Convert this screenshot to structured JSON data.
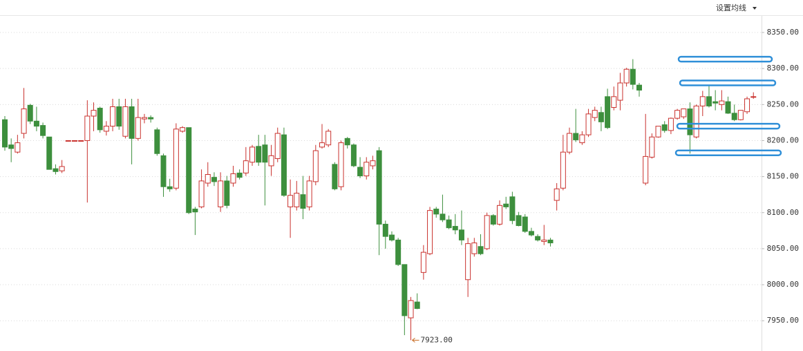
{
  "chart_data": {
    "type": "candlestick",
    "button": "设置均线",
    "open": [
      8229,
      8194,
      8184,
      8210,
      8249,
      8227,
      8221,
      8205,
      8161,
      8158,
      8200,
      8200,
      8200,
      8200,
      8234,
      8245,
      8213,
      8220,
      8247,
      8206,
      8247,
      8203,
      8230,
      8232,
      8215,
      8179,
      8136,
      8134,
      8213,
      8218,
      8105,
      8108,
      8141,
      8149,
      8108,
      8144,
      8141,
      8155,
      8155,
      8170,
      8192,
      8194,
      8165,
      8175,
      8208,
      8108,
      8108,
      8125,
      8108,
      8143,
      8191,
      8194,
      8167,
      8136,
      8203,
      8194,
      8163,
      8151,
      8165,
      8186,
      8084,
      8069,
      8062,
      8028,
      7954,
      7976,
      8017,
      8043,
      8105,
      8098,
      8090,
      8081,
      8076,
      8007,
      8043,
      8053,
      8050,
      8096,
      8084,
      8112,
      8122,
      8096,
      8094,
      8074,
      8067,
      8060,
      8062,
      8117,
      8134,
      8184,
      8210,
      8197,
      8208,
      8232,
      8239,
      8261,
      8246,
      8256,
      8280,
      8299,
      8277,
      8141,
      8177,
      8205,
      8222,
      8214,
      8231,
      8233,
      8244,
      8205,
      8248,
      8261,
      8254,
      8250,
      8254,
      8238,
      8229,
      8240,
      8261
    ],
    "high": [
      8234,
      8203,
      8208,
      8273,
      8251,
      8247,
      8225,
      8205,
      8167,
      8173,
      8200,
      8200,
      8200,
      8256,
      8253,
      8247,
      8227,
      8258,
      8258,
      8258,
      8258,
      8258,
      8237,
      8235,
      8218,
      8182,
      8147,
      8224,
      8220,
      8218,
      8108,
      8160,
      8170,
      8156,
      8156,
      8151,
      8165,
      8160,
      8191,
      8194,
      8208,
      8208,
      8194,
      8218,
      8218,
      8146,
      8144,
      8151,
      8151,
      8194,
      8223,
      8216,
      8170,
      8200,
      8205,
      8196,
      8177,
      8177,
      8179,
      8191,
      8089,
      8074,
      8065,
      8028,
      7983,
      7988,
      8055,
      8108,
      8108,
      8125,
      8096,
      8098,
      8103,
      8065,
      8065,
      8070,
      8100,
      8098,
      8117,
      8122,
      8129,
      8101,
      8098,
      8079,
      8070,
      8083,
      8065,
      8141,
      8208,
      8218,
      8244,
      8213,
      8244,
      8247,
      8247,
      8272,
      8275,
      8294,
      8301,
      8313,
      8280,
      8237,
      8210,
      8220,
      8227,
      8232,
      8244,
      8244,
      8253,
      8250,
      8269,
      8277,
      8270,
      8270,
      8261,
      8250,
      8240,
      8261,
      8267
    ],
    "low": [
      8186,
      8170,
      8182,
      8203,
      8223,
      8213,
      8203,
      8160,
      8153,
      8155,
      8200,
      8200,
      8200,
      8114,
      8213,
      8211,
      8207,
      8213,
      8215,
      8203,
      8167,
      8200,
      8224,
      8225,
      8179,
      8122,
      8129,
      8131,
      8211,
      8098,
      8069,
      8106,
      8136,
      8137,
      8101,
      8106,
      8136,
      8146,
      8151,
      8165,
      8165,
      8110,
      8151,
      8170,
      8122,
      8065,
      8103,
      8091,
      8103,
      8138,
      8189,
      8191,
      8131,
      8131,
      8189,
      8163,
      8148,
      8146,
      8160,
      8041,
      8050,
      8060,
      8026,
      7930,
      7923,
      7966,
      8007,
      8041,
      8093,
      8087,
      8077,
      8070,
      8055,
      7983,
      8039,
      8041,
      8048,
      8082,
      8082,
      8105,
      8084,
      8081,
      8072,
      8067,
      8060,
      8055,
      8053,
      8103,
      8131,
      8181,
      8198,
      8194,
      8205,
      8227,
      8213,
      8216,
      8242,
      8242,
      8275,
      8271,
      8261,
      8138,
      8175,
      8204,
      8211,
      8209,
      8229,
      8230,
      8182,
      8203,
      8234,
      8246,
      8242,
      8242,
      8237,
      8227,
      8228,
      8237,
      8258
    ],
    "close": [
      8191,
      8189,
      8197,
      8244,
      8227,
      8220,
      8207,
      8160,
      8157,
      8164,
      8200,
      8200,
      8200,
      8234,
      8242,
      8215,
      8220,
      8247,
      8220,
      8247,
      8203,
      8232,
      8232,
      8230,
      8182,
      8136,
      8133,
      8216,
      8218,
      8100,
      8101,
      8144,
      8153,
      8143,
      8144,
      8110,
      8154,
      8149,
      8172,
      8191,
      8170,
      8170,
      8179,
      8210,
      8124,
      8124,
      8127,
      8106,
      8144,
      8186,
      8197,
      8213,
      8133,
      8197,
      8194,
      8165,
      8151,
      8170,
      8172,
      8084,
      8067,
      8062,
      8028,
      7957,
      7978,
      7967,
      8045,
      8103,
      8098,
      8090,
      8079,
      8076,
      8062,
      8057,
      8058,
      8043,
      8096,
      8084,
      8110,
      8108,
      8089,
      8082,
      8074,
      8069,
      8062,
      8062,
      8058,
      8133,
      8184,
      8210,
      8201,
      8208,
      8237,
      8242,
      8226,
      8218,
      8261,
      8280,
      8299,
      8278,
      8270,
      8178,
      8205,
      8220,
      8214,
      8231,
      8242,
      8244,
      8208,
      8248,
      8261,
      8248,
      8252,
      8255,
      8238,
      8229,
      8242,
      8258,
      8261
    ],
    "up_color": "#c9302c",
    "down_color": "#3d8f3d",
    "ylim": [
      7908,
      8374
    ],
    "yticks": [
      {
        "value": 7950,
        "label": "7950.00"
      },
      {
        "value": 8000,
        "label": "8000.00"
      },
      {
        "value": 8050,
        "label": "8050.00"
      },
      {
        "value": 8100,
        "label": "8100.00"
      },
      {
        "value": 8150,
        "label": "8150.00"
      },
      {
        "value": 8200,
        "label": "8200.00"
      },
      {
        "value": 8250,
        "label": "8250.00"
      },
      {
        "value": 8300,
        "label": "8300.00"
      },
      {
        "value": 8350,
        "label": "8350.00"
      }
    ],
    "grid": true,
    "min_label": {
      "value": 7923,
      "label": "7923.00"
    },
    "drawn_levels": [
      8313,
      8280,
      8220,
      8183
    ],
    "drawn_level_color": "#2f8fd8"
  }
}
